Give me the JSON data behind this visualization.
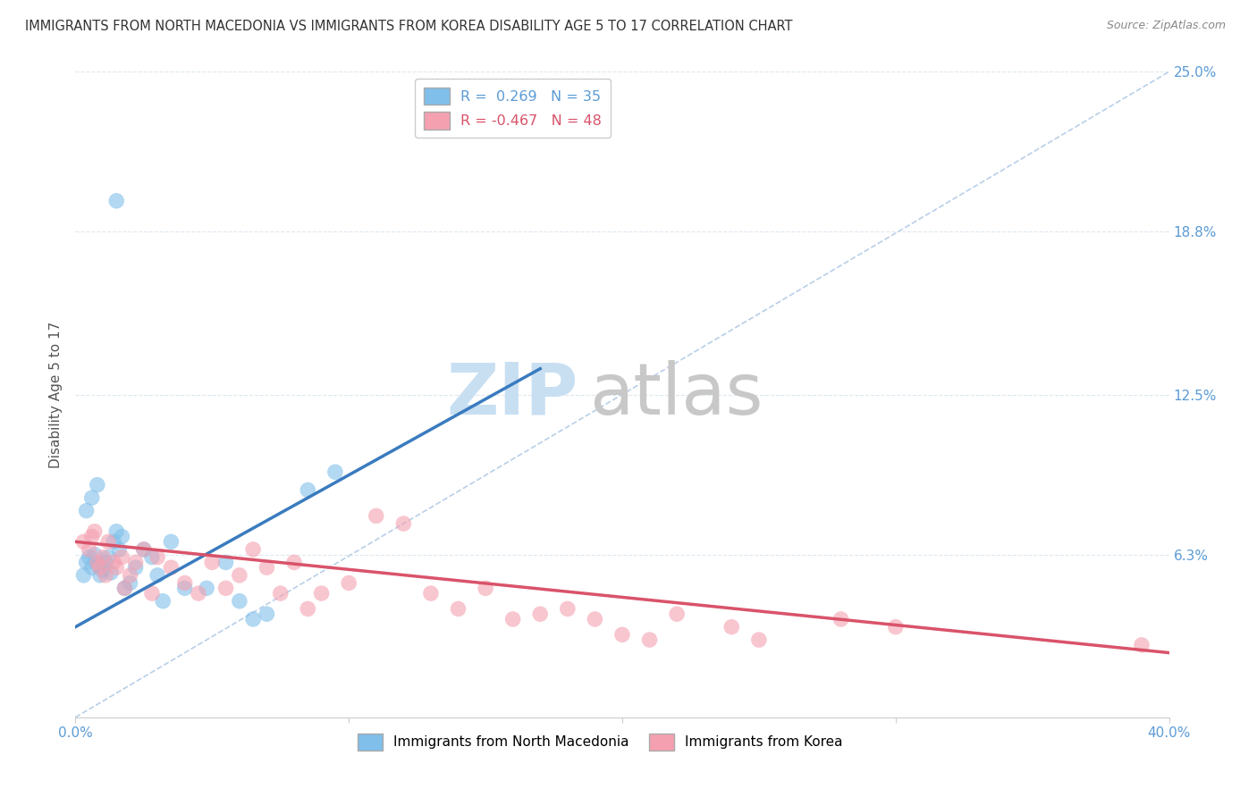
{
  "title": "IMMIGRANTS FROM NORTH MACEDONIA VS IMMIGRANTS FROM KOREA DISABILITY AGE 5 TO 17 CORRELATION CHART",
  "source": "Source: ZipAtlas.com",
  "ylabel": "Disability Age 5 to 17",
  "xlim": [
    0.0,
    0.4
  ],
  "ylim": [
    0.0,
    0.25
  ],
  "xtick_positions": [
    0.0,
    0.1,
    0.2,
    0.3,
    0.4
  ],
  "xticklabels": [
    "0.0%",
    "",
    "",
    "",
    "40.0%"
  ],
  "ytick_labels_right": [
    "6.3%",
    "12.5%",
    "18.8%",
    "25.0%"
  ],
  "ytick_values_right": [
    0.063,
    0.125,
    0.188,
    0.25
  ],
  "r_blue": 0.269,
  "n_blue": 35,
  "r_pink": -0.467,
  "n_pink": 48,
  "legend_label_blue": "Immigrants from North Macedonia",
  "legend_label_pink": "Immigrants from Korea",
  "scatter_blue_x": [
    0.003,
    0.004,
    0.005,
    0.006,
    0.007,
    0.008,
    0.009,
    0.01,
    0.011,
    0.012,
    0.013,
    0.014,
    0.015,
    0.016,
    0.017,
    0.018,
    0.02,
    0.022,
    0.025,
    0.028,
    0.03,
    0.032,
    0.035,
    0.04,
    0.048,
    0.055,
    0.06,
    0.065,
    0.07,
    0.085,
    0.095,
    0.004,
    0.006,
    0.008,
    0.015
  ],
  "scatter_blue_y": [
    0.055,
    0.06,
    0.062,
    0.058,
    0.063,
    0.059,
    0.055,
    0.057,
    0.06,
    0.062,
    0.056,
    0.068,
    0.072,
    0.065,
    0.07,
    0.05,
    0.052,
    0.058,
    0.065,
    0.062,
    0.055,
    0.045,
    0.068,
    0.05,
    0.05,
    0.06,
    0.045,
    0.038,
    0.04,
    0.088,
    0.095,
    0.08,
    0.085,
    0.09,
    0.2
  ],
  "scatter_pink_x": [
    0.003,
    0.005,
    0.006,
    0.007,
    0.008,
    0.009,
    0.01,
    0.011,
    0.012,
    0.014,
    0.015,
    0.017,
    0.018,
    0.02,
    0.022,
    0.025,
    0.028,
    0.03,
    0.035,
    0.04,
    0.045,
    0.05,
    0.055,
    0.06,
    0.065,
    0.07,
    0.075,
    0.08,
    0.085,
    0.09,
    0.1,
    0.11,
    0.12,
    0.13,
    0.14,
    0.15,
    0.16,
    0.17,
    0.18,
    0.19,
    0.2,
    0.21,
    0.22,
    0.24,
    0.25,
    0.28,
    0.3,
    0.39
  ],
  "scatter_pink_y": [
    0.068,
    0.065,
    0.07,
    0.072,
    0.06,
    0.058,
    0.062,
    0.055,
    0.068,
    0.06,
    0.058,
    0.062,
    0.05,
    0.055,
    0.06,
    0.065,
    0.048,
    0.062,
    0.058,
    0.052,
    0.048,
    0.06,
    0.05,
    0.055,
    0.065,
    0.058,
    0.048,
    0.06,
    0.042,
    0.048,
    0.052,
    0.078,
    0.075,
    0.048,
    0.042,
    0.05,
    0.038,
    0.04,
    0.042,
    0.038,
    0.032,
    0.03,
    0.04,
    0.035,
    0.03,
    0.038,
    0.035,
    0.028
  ],
  "blue_line_x": [
    0.0,
    0.17
  ],
  "blue_line_y": [
    0.035,
    0.135
  ],
  "pink_line_x": [
    0.0,
    0.4
  ],
  "pink_line_y": [
    0.068,
    0.025
  ],
  "diagonal_line_x": [
    0.0,
    0.4
  ],
  "diagonal_line_y": [
    0.0,
    0.25
  ],
  "bg_color": "#ffffff",
  "blue_color": "#7fbfea",
  "pink_color": "#f4a0b0",
  "blue_line_color": "#3a7bbf",
  "pink_line_color": "#d9536a",
  "diagonal_color": "#b8cfe8",
  "title_color": "#333333",
  "right_axis_color": "#5b9bd5",
  "grid_color": "#dde8f0",
  "watermark_main_color": "#c8dff2",
  "watermark_atlas_color": "#c8c8c8"
}
